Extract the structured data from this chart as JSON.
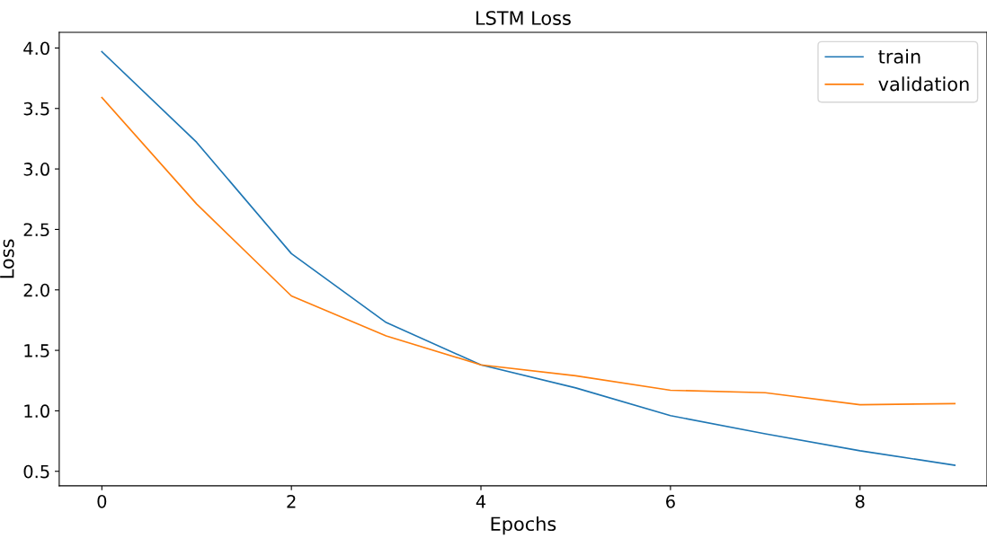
{
  "chart_data": {
    "type": "line",
    "title": "LSTM Loss",
    "xlabel": "Epochs",
    "ylabel": "Loss",
    "x": [
      0,
      1,
      2,
      3,
      4,
      5,
      6,
      7,
      8,
      9
    ],
    "series": [
      {
        "name": "train",
        "color": "#1f77b4",
        "values": [
          3.97,
          3.22,
          2.3,
          1.73,
          1.38,
          1.19,
          0.96,
          0.81,
          0.67,
          0.55
        ]
      },
      {
        "name": "validation",
        "color": "#ff7f0e",
        "values": [
          3.59,
          2.71,
          1.95,
          1.62,
          1.38,
          1.29,
          1.17,
          1.15,
          1.05,
          1.06
        ]
      }
    ],
    "xlim": [
      -0.45,
      9.34
    ],
    "xticks": [
      0,
      2,
      4,
      6,
      8
    ],
    "ylim": [
      0.38,
      4.13
    ],
    "yticks": [
      {
        "value": 0.5,
        "label": "0.5"
      },
      {
        "value": 1.0,
        "label": "1.0"
      },
      {
        "value": 1.5,
        "label": "1.5"
      },
      {
        "value": 2.0,
        "label": "2.0"
      },
      {
        "value": 2.5,
        "label": "2.5"
      },
      {
        "value": 3.0,
        "label": "3.0"
      },
      {
        "value": 3.5,
        "label": "3.5"
      },
      {
        "value": 4.0,
        "label": "4.0"
      }
    ],
    "grid": false,
    "legend": "top right",
    "marker": "none",
    "line_style": "solid"
  }
}
